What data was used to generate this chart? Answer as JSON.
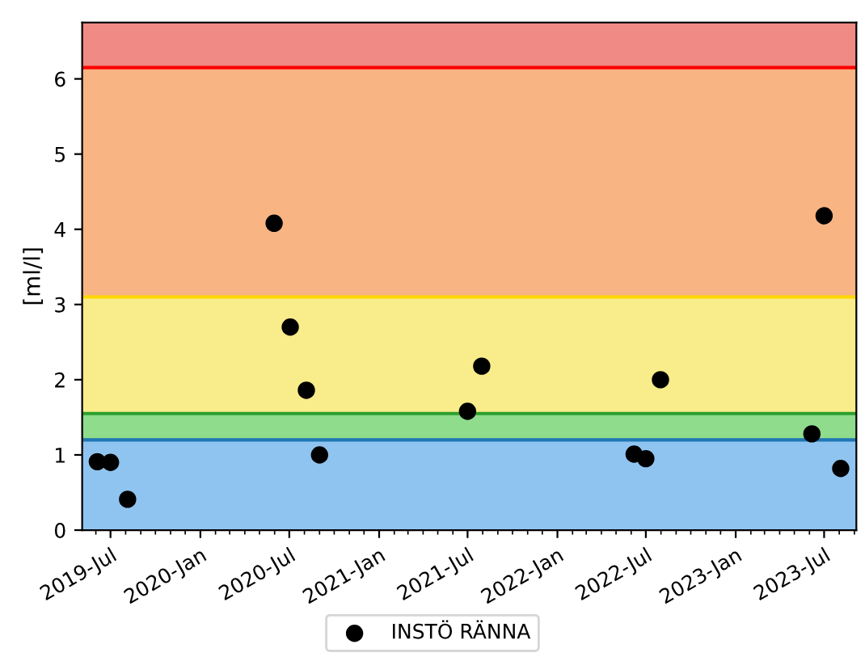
{
  "chart_data": {
    "type": "scatter",
    "ylabel": "[ml/l]",
    "series": [
      {
        "name": "INSTÖ RÄNNA",
        "color": "#000000",
        "x": [
          "2019-06-04",
          "2019-07-01",
          "2019-08-05",
          "2020-05-31",
          "2020-07-03",
          "2020-08-05",
          "2020-09-01",
          "2021-07-01",
          "2021-07-30",
          "2022-06-07",
          "2022-07-01",
          "2022-07-31",
          "2023-06-06",
          "2023-07-01",
          "2023-08-04"
        ],
        "values": [
          0.91,
          0.9,
          0.41,
          4.08,
          2.7,
          1.86,
          1.0,
          1.58,
          2.18,
          1.01,
          0.95,
          2.0,
          1.28,
          4.18,
          0.82
        ]
      }
    ],
    "bands": [
      {
        "axis": "y",
        "from": 0,
        "to": 1.2,
        "color": "#90c4f0"
      },
      {
        "axis": "y",
        "from": 1.2,
        "to": 1.55,
        "color": "#8fdc8c"
      },
      {
        "axis": "y",
        "from": 1.55,
        "to": 3.1,
        "color": "#f9ec8a"
      },
      {
        "axis": "y",
        "from": 3.1,
        "to": 6.15,
        "color": "#f8b483"
      },
      {
        "axis": "y",
        "from": 6.15,
        "to": 6.75,
        "color": "#ef8a84"
      }
    ],
    "ref_lines": [
      {
        "axis": "y",
        "value": 1.2,
        "color": "#1f77b4"
      },
      {
        "axis": "y",
        "value": 1.55,
        "color": "#2ca02c"
      },
      {
        "axis": "y",
        "value": 3.1,
        "color": "#ffd700"
      },
      {
        "axis": "y",
        "value": 6.15,
        "color": "#ff0000"
      }
    ],
    "xlim": [
      "2019-05-04",
      "2023-09-05"
    ],
    "xticks": [
      {
        "value": "2019-07-01",
        "label": "2019-Jul"
      },
      {
        "value": "2020-01-01",
        "label": "2020-Jan"
      },
      {
        "value": "2020-07-01",
        "label": "2020-Jul"
      },
      {
        "value": "2021-01-01",
        "label": "2021-Jan"
      },
      {
        "value": "2021-07-01",
        "label": "2021-Jul"
      },
      {
        "value": "2022-01-01",
        "label": "2022-Jan"
      },
      {
        "value": "2022-07-01",
        "label": "2022-Jul"
      },
      {
        "value": "2023-01-01",
        "label": "2023-Jan"
      },
      {
        "value": "2023-07-01",
        "label": "2023-Jul"
      }
    ],
    "ylim": [
      0,
      6.75
    ],
    "yticks": [
      0,
      1,
      2,
      3,
      4,
      5,
      6
    ],
    "marker": "circle",
    "legend": "bottom",
    "grid": false
  }
}
